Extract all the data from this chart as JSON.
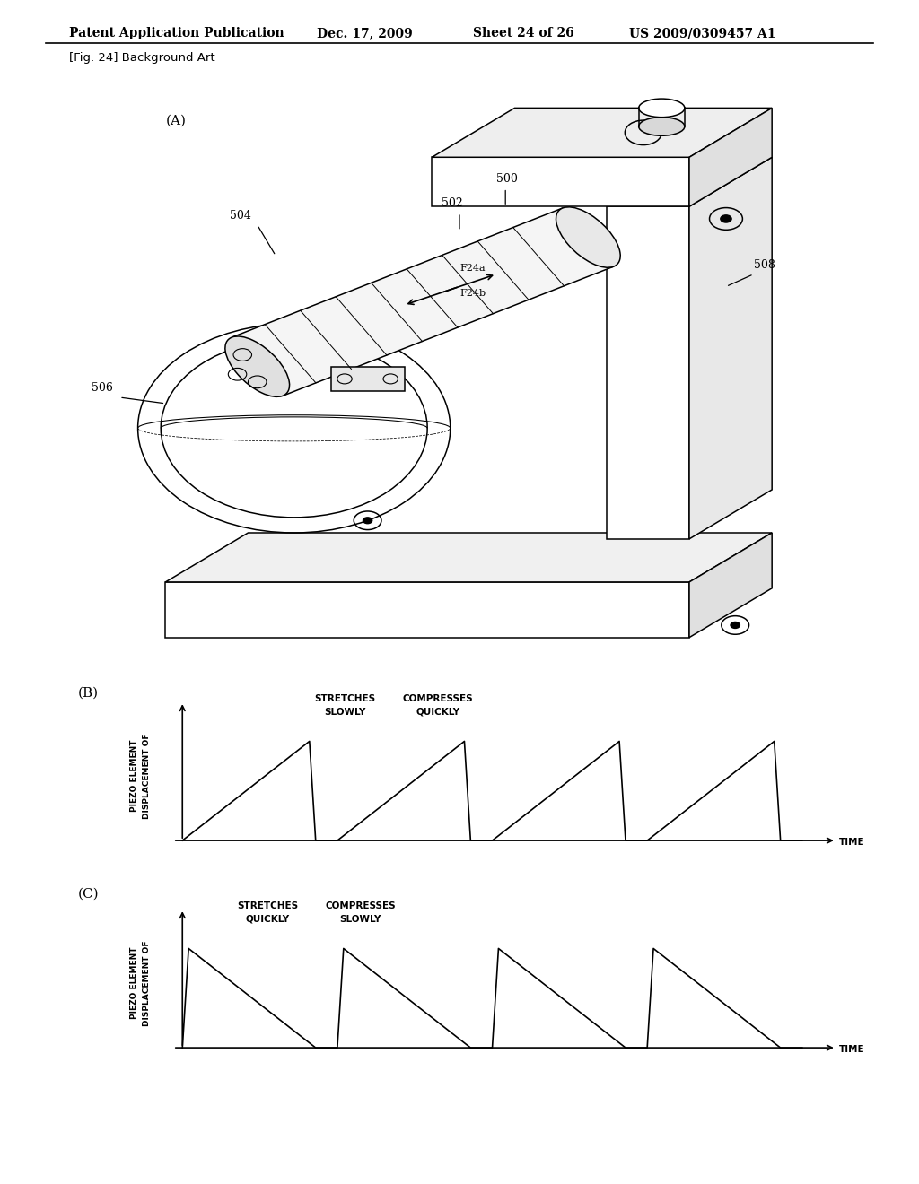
{
  "title": "Patent Application Publication",
  "date": "Dec. 17, 2009",
  "sheet": "Sheet 24 of 26",
  "patent_num": "US 2009/0309457 A1",
  "fig_label": "[Fig. 24] Background Art",
  "section_A_label": "(A)",
  "section_B_label": "(B)",
  "section_C_label": "(C)",
  "label_500": "500",
  "label_502": "502",
  "label_504": "504",
  "label_506": "506",
  "label_508": "508",
  "label_F24a": "F24a",
  "label_F24b": "F24b",
  "B_title1": "STRETCHES",
  "B_title2": "SLOWLY",
  "B_title3": "COMPRESSES",
  "B_title4": "QUICKLY",
  "C_title1": "STRETCHES",
  "C_title2": "QUICKLY",
  "C_title3": "COMPRESSES",
  "C_title4": "SLOWLY",
  "ylabel_B1": "DISPLACEMENT OF",
  "ylabel_B2": "PIEZO ELEMENT",
  "xlabel_B": "TIME",
  "ylabel_C1": "DISPLACEMENT OF",
  "ylabel_C2": "PIEZO ELEMENT",
  "xlabel_C": "TIME",
  "bg_color": "#ffffff",
  "line_color": "#000000"
}
